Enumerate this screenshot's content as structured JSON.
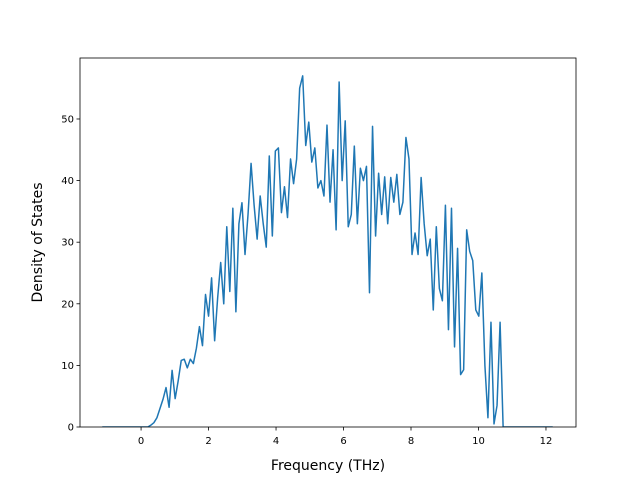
{
  "chart_data": {
    "type": "line",
    "xlabel": "Frequency (THz)",
    "ylabel": "Density of States",
    "color": "#1f77b4",
    "xlim": [
      -1.81,
      12.89
    ],
    "ylim": [
      0,
      59.9
    ],
    "xticks": [
      0,
      2,
      4,
      6,
      8,
      10,
      12
    ],
    "yticks": [
      0,
      10,
      20,
      30,
      40,
      50
    ],
    "grid": false,
    "x": [
      -1.15,
      0.2,
      0.29,
      0.38,
      0.47,
      0.56,
      0.65,
      0.74,
      0.83,
      0.92,
      1.01,
      1.1,
      1.19,
      1.28,
      1.37,
      1.46,
      1.55,
      1.64,
      1.73,
      1.82,
      1.91,
      2.0,
      2.09,
      2.18,
      2.27,
      2.36,
      2.45,
      2.54,
      2.63,
      2.72,
      2.81,
      2.9,
      2.99,
      3.08,
      3.17,
      3.26,
      3.35,
      3.44,
      3.53,
      3.62,
      3.71,
      3.8,
      3.89,
      3.98,
      4.07,
      4.16,
      4.25,
      4.34,
      4.43,
      4.52,
      4.61,
      4.7,
      4.79,
      4.88,
      4.97,
      5.06,
      5.15,
      5.24,
      5.33,
      5.42,
      5.51,
      5.6,
      5.69,
      5.78,
      5.87,
      5.96,
      6.05,
      6.14,
      6.23,
      6.32,
      6.41,
      6.5,
      6.59,
      6.68,
      6.77,
      6.86,
      6.95,
      7.04,
      7.13,
      7.22,
      7.31,
      7.4,
      7.49,
      7.58,
      7.67,
      7.76,
      7.85,
      7.94,
      8.03,
      8.12,
      8.21,
      8.3,
      8.39,
      8.48,
      8.57,
      8.66,
      8.75,
      8.84,
      8.93,
      9.02,
      9.11,
      9.2,
      9.29,
      9.38,
      9.47,
      9.56,
      9.65,
      9.74,
      9.83,
      9.92,
      10.01,
      10.1,
      10.19,
      10.28,
      10.37,
      10.46,
      10.55,
      10.64,
      10.73,
      12.2
    ],
    "values": [
      0,
      0,
      0.3,
      0.7,
      1.5,
      3,
      4.5,
      6.4,
      3.2,
      9.2,
      4.6,
      7.5,
      10.8,
      11,
      9.6,
      11,
      10.3,
      12.8,
      16.3,
      13.2,
      21.5,
      18,
      24.2,
      14,
      21,
      26.7,
      20,
      32.5,
      22,
      35.5,
      18.7,
      33,
      36.4,
      28,
      34.5,
      42.8,
      36,
      30.5,
      37.5,
      33,
      29.2,
      44,
      31,
      44.8,
      45.3,
      34.8,
      39,
      34,
      43.5,
      39.5,
      43.5,
      55,
      57,
      45.7,
      49.5,
      43,
      45.3,
      38.8,
      40,
      37.5,
      49,
      36.5,
      45,
      32,
      56,
      40,
      49.7,
      32.5,
      34.5,
      45.6,
      33,
      42,
      40,
      42.3,
      21.8,
      48.8,
      31,
      41.2,
      34.5,
      40.6,
      33,
      40.5,
      36.5,
      41,
      34.5,
      36.5,
      47,
      43.5,
      28,
      31.5,
      28,
      40.5,
      33,
      27.8,
      30.5,
      19,
      32.5,
      22.5,
      20.5,
      36,
      15.8,
      35.5,
      13,
      29,
      8.5,
      9.3,
      32,
      28.5,
      27,
      19,
      18,
      25,
      10,
      1.5,
      17,
      0.5,
      3.5,
      17,
      0,
      0
    ]
  }
}
